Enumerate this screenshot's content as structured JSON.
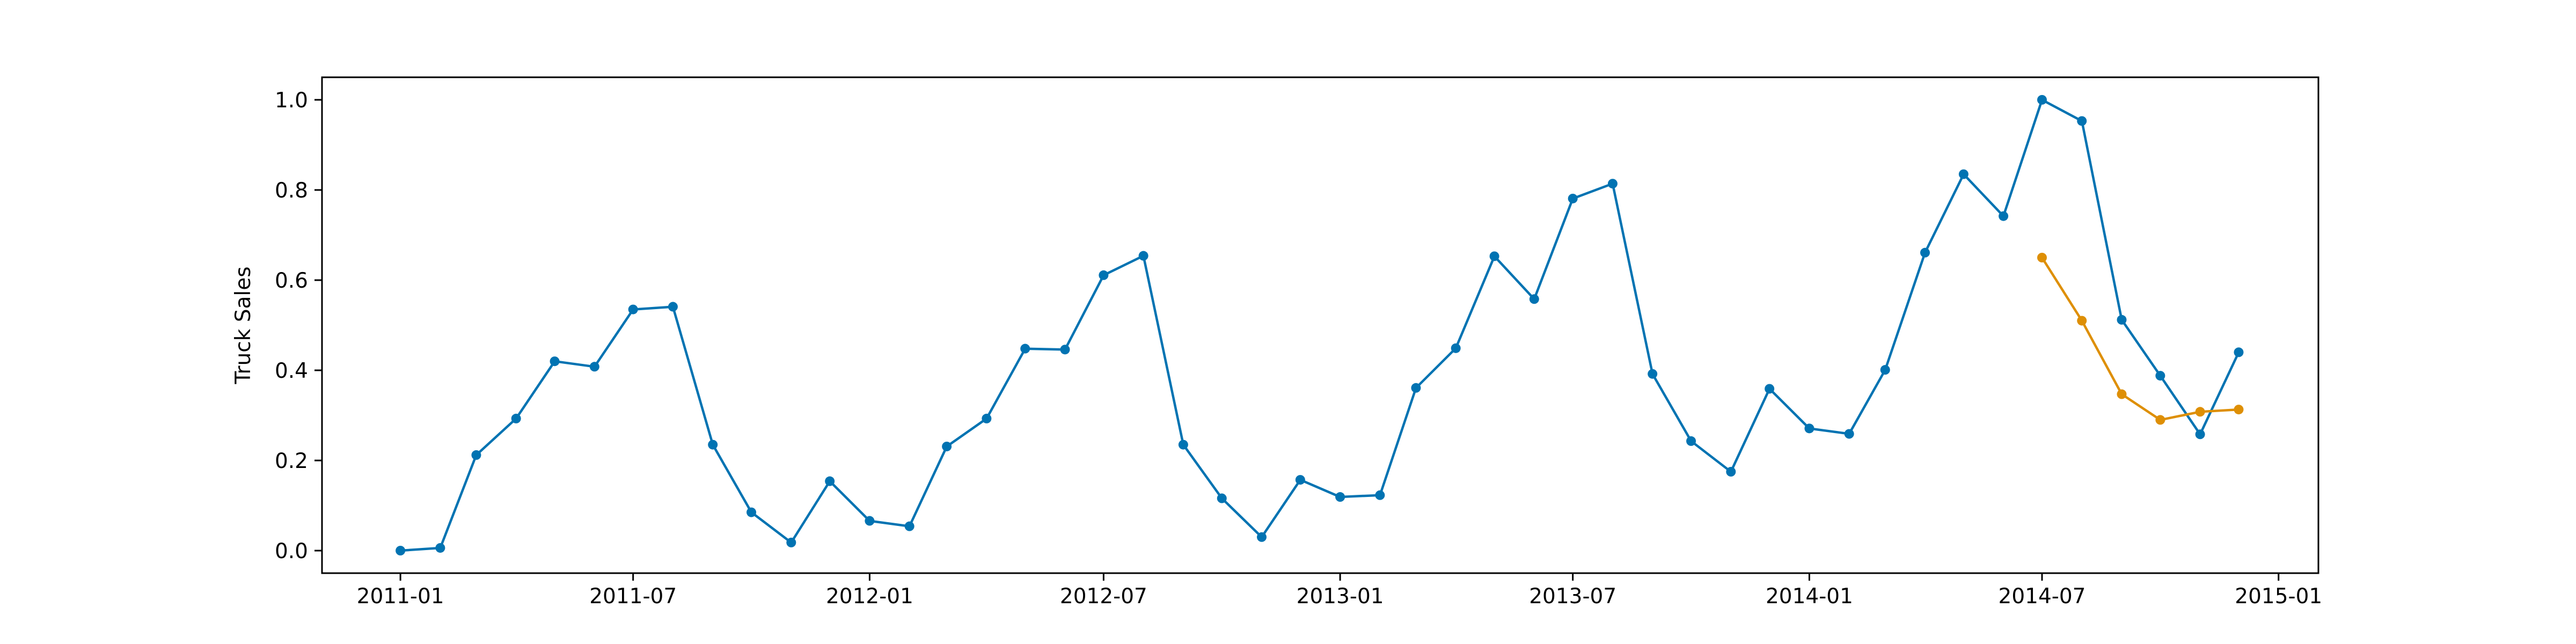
{
  "chart_data": {
    "type": "line",
    "title": "",
    "xlabel": "",
    "ylabel": "Truck Sales",
    "ylim": [
      -0.05,
      1.05
    ],
    "xlim": [
      "2010-11-01",
      "2015-02-01"
    ],
    "grid": false,
    "yticks": [
      0.0,
      0.2,
      0.4,
      0.6,
      0.8,
      1.0
    ],
    "ytick_labels": [
      "0.0",
      "0.2",
      "0.4",
      "0.6",
      "0.8",
      "1.0"
    ],
    "xticks": [
      "2011-01-01",
      "2011-07-01",
      "2012-01-01",
      "2012-07-01",
      "2013-01-01",
      "2013-07-01",
      "2014-01-01",
      "2014-07-01",
      "2015-01-01"
    ],
    "xtick_labels": [
      "2011-01",
      "2011-07",
      "2012-01",
      "2012-07",
      "2013-01",
      "2013-07",
      "2014-01",
      "2014-07",
      "2015-01"
    ],
    "series": [
      {
        "color": "#0173b2",
        "x": [
          "2011-01-01",
          "2011-02-01",
          "2011-03-01",
          "2011-04-01",
          "2011-05-01",
          "2011-06-01",
          "2011-07-01",
          "2011-08-01",
          "2011-09-01",
          "2011-10-01",
          "2011-11-01",
          "2011-12-01",
          "2012-01-01",
          "2012-02-01",
          "2012-03-01",
          "2012-04-01",
          "2012-05-01",
          "2012-06-01",
          "2012-07-01",
          "2012-08-01",
          "2012-09-01",
          "2012-10-01",
          "2012-11-01",
          "2012-12-01",
          "2013-01-01",
          "2013-02-01",
          "2013-03-01",
          "2013-04-01",
          "2013-05-01",
          "2013-06-01",
          "2013-07-01",
          "2013-08-01",
          "2013-09-01",
          "2013-10-01",
          "2013-11-01",
          "2013-12-01",
          "2014-01-01",
          "2014-02-01",
          "2014-03-01",
          "2014-04-01",
          "2014-05-01",
          "2014-06-01",
          "2014-07-01",
          "2014-08-01",
          "2014-09-01",
          "2014-10-01",
          "2014-11-01",
          "2014-12-01"
        ],
        "values": [
          0.0,
          0.006,
          0.212,
          0.293,
          0.42,
          0.408,
          0.535,
          0.541,
          0.235,
          0.085,
          0.018,
          0.154,
          0.066,
          0.054,
          0.231,
          0.293,
          0.448,
          0.446,
          0.611,
          0.654,
          0.235,
          0.116,
          0.03,
          0.157,
          0.119,
          0.123,
          0.361,
          0.449,
          0.653,
          0.558,
          0.781,
          0.814,
          0.392,
          0.243,
          0.175,
          0.359,
          0.271,
          0.259,
          0.401,
          0.661,
          0.835,
          0.742,
          1.0,
          0.953,
          0.512,
          0.388,
          0.258,
          0.44
        ]
      },
      {
        "color": "#de8f05",
        "x": [
          "2014-07-01",
          "2014-08-01",
          "2014-09-01",
          "2014-10-01",
          "2014-11-01",
          "2014-12-01"
        ],
        "values": [
          0.65,
          0.51,
          0.347,
          0.29,
          0.308,
          0.313
        ]
      }
    ]
  }
}
